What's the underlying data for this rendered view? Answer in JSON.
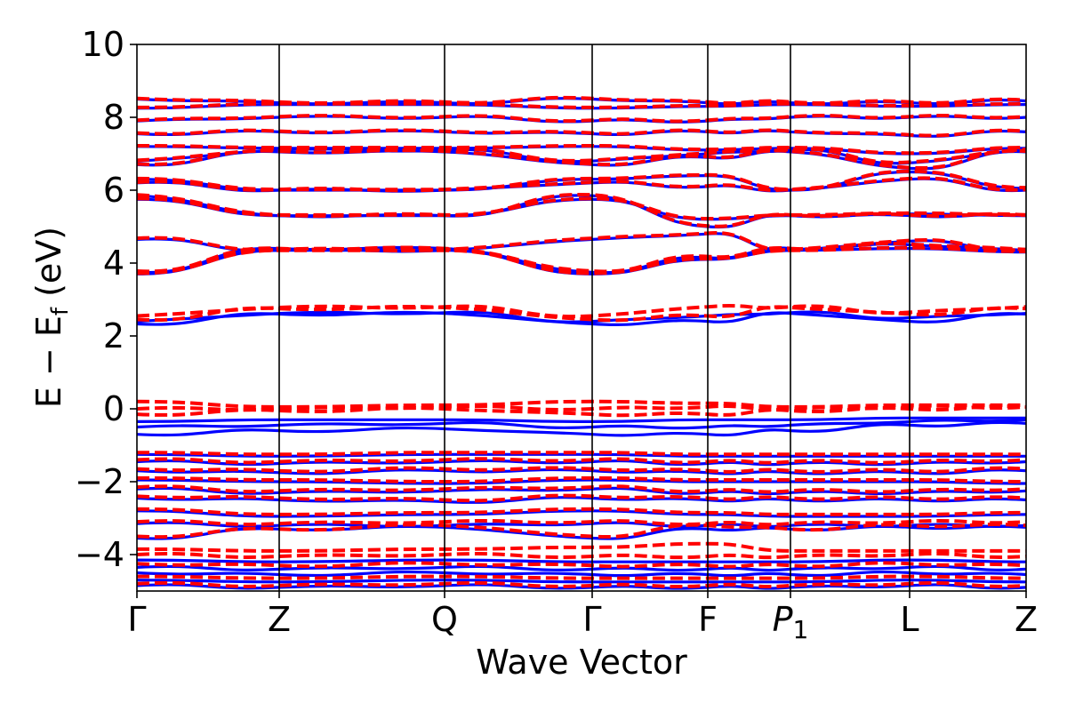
{
  "chart_data": {
    "type": "line",
    "title": "",
    "xlabel": "Wave Vector",
    "ylabel": "E − E",
    "ylabel_sub": "f",
    "ylabel_unit": " (eV)",
    "ylim": [
      -5,
      10
    ],
    "yticks": [
      {
        "value": 10,
        "label": "10"
      },
      {
        "value": 8,
        "label": "8"
      },
      {
        "value": 6,
        "label": "6"
      },
      {
        "value": 4,
        "label": "4"
      },
      {
        "value": 2,
        "label": "2"
      },
      {
        "value": 0,
        "label": "0"
      },
      {
        "value": -2,
        "label": "−2"
      },
      {
        "value": -4,
        "label": "−4"
      }
    ],
    "high_symmetry_points": [
      {
        "name": "Gamma",
        "label": "Γ",
        "sub": "",
        "italic": false
      },
      {
        "name": "Z",
        "label": "Z",
        "sub": "",
        "italic": false
      },
      {
        "name": "Q",
        "label": "Q",
        "sub": "",
        "italic": false
      },
      {
        "name": "Gamma2",
        "label": "Γ",
        "sub": "",
        "italic": false
      },
      {
        "name": "F",
        "label": "F",
        "sub": "",
        "italic": false
      },
      {
        "name": "P1",
        "label": "P",
        "sub": "1",
        "italic": true
      },
      {
        "name": "L",
        "label": "L",
        "sub": "",
        "italic": false
      },
      {
        "name": "Z2",
        "label": "Z",
        "sub": "",
        "italic": false
      }
    ],
    "kpath": [
      0,
      0.16,
      0.346,
      0.512,
      0.642,
      0.735,
      0.869,
      1.0
    ],
    "grid": false,
    "legend": "none",
    "series": [
      {
        "color": "#0000ff",
        "style": "solid",
        "bands": [
          [
            -4.85,
            -4.9,
            -4.85,
            -4.9,
            -4.9,
            -4.9,
            -4.85,
            -4.9
          ],
          [
            -4.7,
            -4.75,
            -4.7,
            -4.75,
            -4.75,
            -4.75,
            -4.7,
            -4.75
          ],
          [
            -4.5,
            -4.55,
            -4.5,
            -4.55,
            -4.55,
            -4.55,
            -4.5,
            -4.55
          ],
          [
            -4.35,
            -4.4,
            -4.35,
            -4.4,
            -4.4,
            -4.4,
            -4.35,
            -4.4
          ],
          [
            -4.15,
            -4.2,
            -4.15,
            -4.2,
            -4.2,
            -4.2,
            -4.15,
            -4.2
          ],
          [
            -3.55,
            -3.3,
            -3.25,
            -3.55,
            -3.3,
            -3.3,
            -3.25,
            -3.25
          ],
          [
            -3.15,
            -3.2,
            -3.2,
            -3.15,
            -3.2,
            -3.2,
            -3.2,
            -3.2
          ],
          [
            -2.8,
            -2.95,
            -2.9,
            -2.8,
            -2.9,
            -2.95,
            -2.95,
            -2.9
          ],
          [
            -2.45,
            -2.5,
            -2.55,
            -2.45,
            -2.5,
            -2.5,
            -2.5,
            -2.5
          ],
          [
            -2.2,
            -2.3,
            -2.25,
            -2.2,
            -2.3,
            -2.3,
            -2.3,
            -2.25
          ],
          [
            -1.95,
            -2.0,
            -2.05,
            -1.95,
            -2.0,
            -2.0,
            -2.0,
            -2.05
          ],
          [
            -1.7,
            -1.75,
            -1.7,
            -1.7,
            -1.75,
            -1.75,
            -1.75,
            -1.7
          ],
          [
            -1.45,
            -1.5,
            -1.45,
            -1.45,
            -1.5,
            -1.5,
            -1.5,
            -1.45
          ],
          [
            -1.25,
            -1.3,
            -1.25,
            -1.25,
            -1.3,
            -1.3,
            -1.3,
            -1.3
          ],
          [
            -0.7,
            -0.6,
            -0.55,
            -0.7,
            -0.7,
            -0.6,
            -0.45,
            -0.4
          ],
          [
            -0.5,
            -0.45,
            -0.4,
            -0.5,
            -0.5,
            -0.45,
            -0.35,
            -0.3
          ],
          [
            -0.35,
            -0.3,
            -0.3,
            -0.35,
            -0.3,
            -0.3,
            -0.25,
            -0.25
          ],
          [
            2.33,
            2.6,
            2.62,
            2.33,
            2.4,
            2.62,
            2.4,
            2.6
          ],
          [
            2.4,
            2.62,
            2.64,
            2.4,
            2.55,
            2.64,
            2.5,
            2.62
          ],
          [
            3.7,
            4.35,
            4.35,
            3.7,
            4.1,
            4.35,
            4.4,
            4.3
          ],
          [
            3.75,
            4.4,
            4.4,
            3.75,
            4.15,
            4.4,
            4.5,
            4.35
          ],
          [
            4.65,
            4.35,
            4.35,
            4.65,
            4.8,
            4.35,
            4.6,
            4.35
          ],
          [
            5.75,
            5.3,
            5.3,
            5.75,
            5.2,
            5.3,
            5.35,
            5.3
          ],
          [
            5.85,
            5.3,
            5.3,
            5.85,
            5.0,
            5.3,
            5.3,
            5.3
          ],
          [
            6.2,
            6.0,
            6.0,
            6.2,
            6.1,
            6.0,
            6.3,
            6.0
          ],
          [
            6.3,
            6.0,
            6.0,
            6.3,
            6.4,
            6.0,
            6.5,
            6.05
          ],
          [
            6.7,
            7.05,
            7.05,
            6.7,
            6.9,
            7.05,
            6.6,
            7.05
          ],
          [
            6.8,
            7.1,
            7.1,
            6.8,
            7.0,
            7.1,
            6.75,
            7.1
          ],
          [
            7.2,
            7.15,
            7.15,
            7.2,
            7.1,
            7.15,
            7.0,
            7.15
          ],
          [
            7.55,
            7.6,
            7.6,
            7.55,
            7.6,
            7.6,
            7.5,
            7.6
          ],
          [
            7.9,
            8.0,
            8.0,
            7.9,
            7.9,
            8.0,
            8.0,
            8.0
          ],
          [
            8.25,
            8.35,
            8.35,
            8.25,
            8.3,
            8.35,
            8.3,
            8.35
          ],
          [
            8.5,
            8.4,
            8.4,
            8.5,
            8.4,
            8.4,
            8.4,
            8.45
          ]
        ]
      },
      {
        "color": "#ff0000",
        "style": "dashed",
        "bands": [
          [
            -4.8,
            -4.85,
            -4.8,
            -4.85,
            -4.85,
            -4.85,
            -4.8,
            -4.85
          ],
          [
            -4.6,
            -4.65,
            -4.6,
            -4.65,
            -4.65,
            -4.65,
            -4.6,
            -4.65
          ],
          [
            -4.25,
            -4.3,
            -4.25,
            -4.3,
            -4.3,
            -4.3,
            -4.25,
            -4.3
          ],
          [
            -4.0,
            -4.05,
            -4.0,
            -4.05,
            -4.05,
            -4.05,
            -4.0,
            -4.05
          ],
          [
            -3.85,
            -3.9,
            -3.85,
            -3.8,
            -3.7,
            -3.9,
            -3.9,
            -3.9
          ],
          [
            -3.5,
            -3.3,
            -3.2,
            -3.5,
            -3.2,
            -3.3,
            -3.2,
            -3.2
          ],
          [
            -3.1,
            -3.15,
            -3.1,
            -3.1,
            -3.15,
            -3.15,
            -3.1,
            -3.1
          ],
          [
            -2.75,
            -2.9,
            -2.85,
            -2.75,
            -2.85,
            -2.9,
            -2.9,
            -2.85
          ],
          [
            -2.4,
            -2.45,
            -2.5,
            -2.4,
            -2.45,
            -2.45,
            -2.45,
            -2.45
          ],
          [
            -2.15,
            -2.25,
            -2.2,
            -2.15,
            -2.25,
            -2.25,
            -2.25,
            -2.2
          ],
          [
            -1.9,
            -1.95,
            -2.0,
            -1.9,
            -1.95,
            -1.95,
            -1.95,
            -2.0
          ],
          [
            -1.65,
            -1.7,
            -1.65,
            -1.65,
            -1.7,
            -1.7,
            -1.7,
            -1.65
          ],
          [
            -1.4,
            -1.45,
            -1.4,
            -1.4,
            -1.45,
            -1.45,
            -1.45,
            -1.4
          ],
          [
            -1.2,
            -1.25,
            -1.2,
            -1.2,
            -1.25,
            -1.25,
            -1.25,
            -1.25
          ],
          [
            -0.15,
            -0.05,
            0.0,
            -0.15,
            -0.15,
            -0.05,
            0.0,
            0.05
          ],
          [
            0.0,
            0.0,
            0.05,
            0.0,
            0.05,
            0.0,
            0.05,
            0.05
          ],
          [
            0.2,
            0.05,
            0.1,
            0.2,
            0.15,
            0.05,
            0.1,
            0.1
          ],
          [
            2.45,
            2.75,
            2.78,
            2.45,
            2.55,
            2.78,
            2.6,
            2.75
          ],
          [
            2.55,
            2.78,
            2.8,
            2.55,
            2.8,
            2.8,
            2.65,
            2.8
          ],
          [
            3.72,
            4.35,
            4.35,
            3.72,
            4.12,
            4.35,
            4.42,
            4.32
          ],
          [
            3.78,
            4.4,
            4.4,
            3.78,
            4.18,
            4.4,
            4.52,
            4.37
          ],
          [
            4.68,
            4.37,
            4.37,
            4.68,
            4.82,
            4.37,
            4.62,
            4.37
          ],
          [
            5.77,
            5.32,
            5.32,
            5.77,
            5.22,
            5.32,
            5.37,
            5.32
          ],
          [
            5.87,
            5.32,
            5.32,
            5.87,
            5.02,
            5.32,
            5.32,
            5.32
          ],
          [
            6.22,
            6.02,
            6.02,
            6.22,
            6.12,
            6.02,
            6.32,
            6.02
          ],
          [
            6.32,
            6.02,
            6.02,
            6.32,
            6.42,
            6.02,
            6.52,
            6.07
          ],
          [
            6.72,
            7.07,
            7.07,
            6.72,
            6.92,
            7.07,
            6.62,
            7.07
          ],
          [
            6.82,
            7.12,
            7.12,
            6.82,
            7.02,
            7.12,
            6.77,
            7.12
          ],
          [
            7.22,
            7.17,
            7.17,
            7.22,
            7.12,
            7.17,
            7.02,
            7.17
          ],
          [
            7.57,
            7.62,
            7.62,
            7.57,
            7.62,
            7.62,
            7.52,
            7.62
          ],
          [
            7.92,
            8.02,
            8.02,
            7.92,
            7.92,
            8.02,
            8.02,
            8.02
          ],
          [
            8.27,
            8.37,
            8.37,
            8.27,
            8.32,
            8.37,
            8.32,
            8.37
          ],
          [
            8.52,
            8.42,
            8.42,
            8.52,
            8.42,
            8.42,
            8.42,
            8.47
          ]
        ]
      }
    ]
  }
}
